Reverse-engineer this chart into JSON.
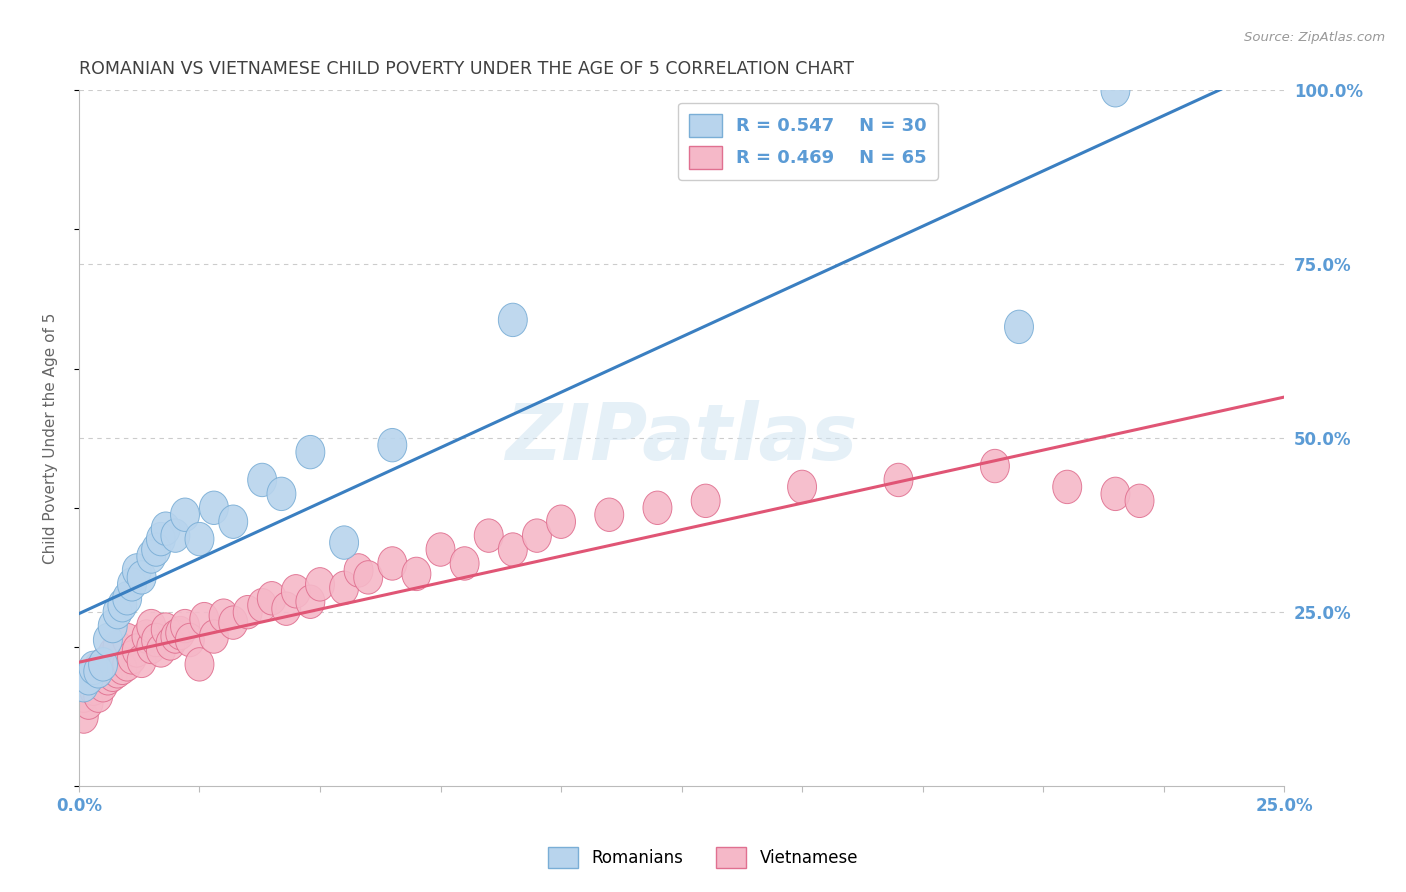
{
  "title": "ROMANIAN VS VIETNAMESE CHILD POVERTY UNDER THE AGE OF 5 CORRELATION CHART",
  "source": "Source: ZipAtlas.com",
  "ylabel": "Child Poverty Under the Age of 5",
  "xlim": [
    0,
    0.25
  ],
  "ylim": [
    0,
    1.0
  ],
  "ytick_positions": [
    0.0,
    0.25,
    0.5,
    0.75,
    1.0
  ],
  "ytick_labels": [
    "",
    "25.0%",
    "50.0%",
    "75.0%",
    "100.0%"
  ],
  "xtick_positions": [
    0.0,
    0.025,
    0.05,
    0.075,
    0.1,
    0.125,
    0.15,
    0.175,
    0.2,
    0.225,
    0.25
  ],
  "xtick_labels": [
    "0.0%",
    "",
    "",
    "",
    "",
    "",
    "",
    "",
    "",
    "",
    "25.0%"
  ],
  "romanian_fill": "#b8d4ed",
  "romanian_edge": "#7aaed6",
  "vietnamese_fill": "#f5b8c8",
  "vietnamese_edge": "#e07090",
  "romanian_line_color": "#3a7fc1",
  "vietnamese_line_color": "#e05575",
  "r_romanian": 0.547,
  "n_romanian": 30,
  "r_vietnamese": 0.469,
  "n_vietnamese": 65,
  "background_color": "#ffffff",
  "grid_color": "#cccccc",
  "watermark": "ZIPatlas",
  "title_color": "#404040",
  "tick_label_color": "#5b9bd5",
  "legend_text_color": "#5b9bd5",
  "rom_x": [
    0.001,
    0.002,
    0.003,
    0.004,
    0.005,
    0.006,
    0.007,
    0.008,
    0.009,
    0.01,
    0.011,
    0.012,
    0.013,
    0.015,
    0.016,
    0.017,
    0.018,
    0.02,
    0.022,
    0.025,
    0.028,
    0.032,
    0.038,
    0.042,
    0.048,
    0.055,
    0.065,
    0.09,
    0.195,
    0.215
  ],
  "rom_y": [
    0.145,
    0.155,
    0.17,
    0.165,
    0.175,
    0.21,
    0.23,
    0.25,
    0.26,
    0.27,
    0.29,
    0.31,
    0.3,
    0.33,
    0.34,
    0.355,
    0.37,
    0.36,
    0.39,
    0.355,
    0.4,
    0.38,
    0.44,
    0.42,
    0.48,
    0.35,
    0.49,
    0.67,
    0.66,
    1.0
  ],
  "viet_x": [
    0.001,
    0.001,
    0.002,
    0.002,
    0.003,
    0.003,
    0.004,
    0.004,
    0.005,
    0.005,
    0.006,
    0.006,
    0.007,
    0.007,
    0.008,
    0.008,
    0.009,
    0.01,
    0.01,
    0.011,
    0.012,
    0.013,
    0.014,
    0.015,
    0.015,
    0.016,
    0.017,
    0.018,
    0.019,
    0.02,
    0.021,
    0.022,
    0.023,
    0.025,
    0.026,
    0.028,
    0.03,
    0.032,
    0.035,
    0.038,
    0.04,
    0.043,
    0.045,
    0.048,
    0.05,
    0.055,
    0.058,
    0.06,
    0.065,
    0.07,
    0.075,
    0.08,
    0.085,
    0.09,
    0.095,
    0.1,
    0.11,
    0.12,
    0.13,
    0.15,
    0.17,
    0.19,
    0.205,
    0.215,
    0.22
  ],
  "viet_y": [
    0.1,
    0.13,
    0.12,
    0.15,
    0.14,
    0.16,
    0.13,
    0.17,
    0.145,
    0.175,
    0.155,
    0.18,
    0.16,
    0.19,
    0.165,
    0.2,
    0.17,
    0.175,
    0.21,
    0.185,
    0.195,
    0.18,
    0.215,
    0.2,
    0.23,
    0.21,
    0.195,
    0.225,
    0.205,
    0.215,
    0.22,
    0.23,
    0.21,
    0.175,
    0.24,
    0.215,
    0.245,
    0.235,
    0.25,
    0.26,
    0.27,
    0.255,
    0.28,
    0.265,
    0.29,
    0.285,
    0.31,
    0.3,
    0.32,
    0.305,
    0.34,
    0.32,
    0.36,
    0.34,
    0.36,
    0.38,
    0.39,
    0.4,
    0.41,
    0.43,
    0.44,
    0.46,
    0.43,
    0.42,
    0.41
  ]
}
